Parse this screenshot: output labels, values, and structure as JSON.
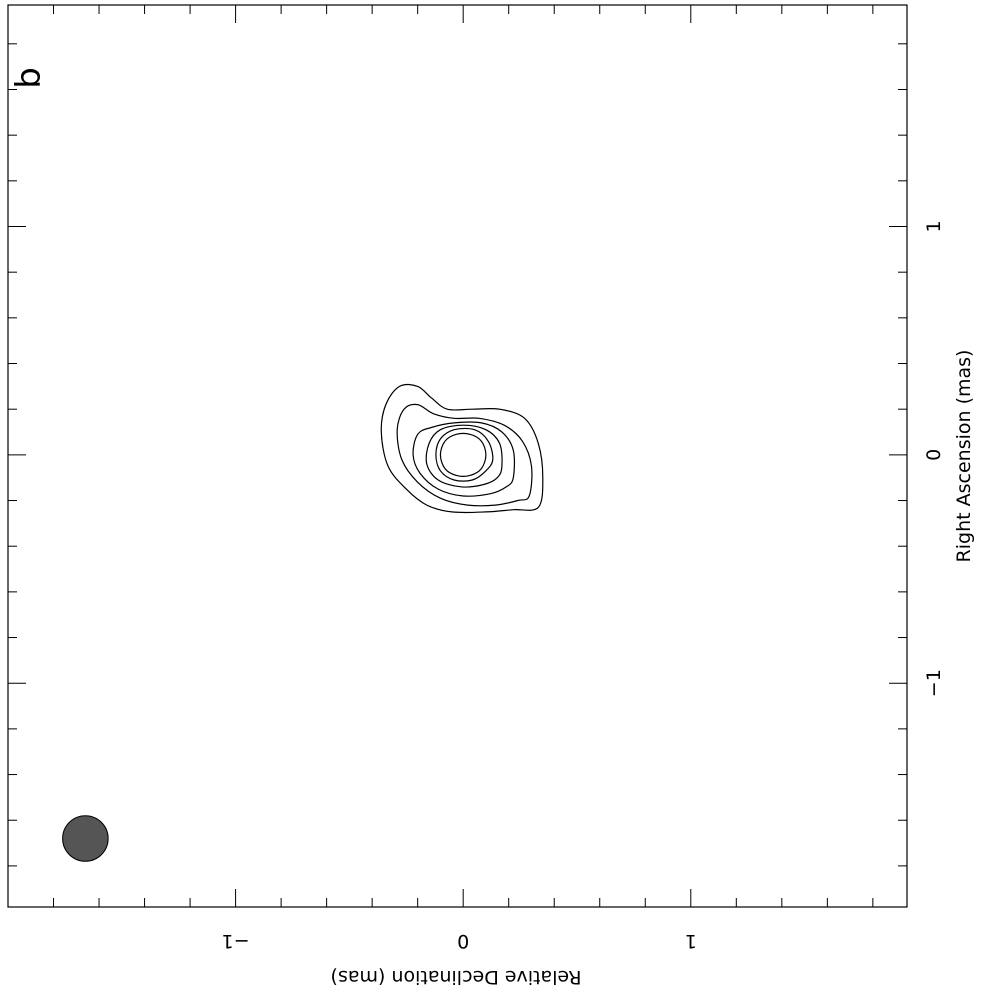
{
  "chart_data": {
    "type": "contour",
    "panel_label": "b",
    "xlabel": "Right Ascension  (mas)",
    "ylabel": "Relative Declination  (mas)",
    "x_ticks": [
      {
        "value": 1,
        "label": "1"
      },
      {
        "value": 0,
        "label": "0"
      },
      {
        "value": -1,
        "label": "−1"
      }
    ],
    "y_ticks": [
      {
        "value": -1,
        "label": "−1"
      },
      {
        "value": 0,
        "label": "0"
      },
      {
        "value": 1,
        "label": "1"
      }
    ],
    "xlim": [
      1.97,
      -1.98
    ],
    "ylim": [
      -2.0,
      1.95
    ],
    "contours": [
      [
        [
          -0.23,
          0.33
        ],
        [
          -0.1,
          0.35
        ],
        [
          0.05,
          0.33
        ],
        [
          0.16,
          0.27
        ],
        [
          0.2,
          0.16
        ],
        [
          0.2,
          0.04
        ],
        [
          0.2,
          -0.07
        ],
        [
          0.25,
          -0.14
        ],
        [
          0.3,
          -0.2
        ],
        [
          0.3,
          -0.28
        ],
        [
          0.22,
          -0.34
        ],
        [
          0.1,
          -0.36
        ],
        [
          -0.05,
          -0.33
        ],
        [
          -0.15,
          -0.25
        ],
        [
          -0.22,
          -0.16
        ],
        [
          -0.25,
          -0.05
        ],
        [
          -0.25,
          0.1
        ],
        [
          -0.24,
          0.22
        ]
      ],
      [
        [
          -0.18,
          0.29
        ],
        [
          -0.05,
          0.3
        ],
        [
          0.06,
          0.26
        ],
        [
          0.13,
          0.18
        ],
        [
          0.16,
          0.07
        ],
        [
          0.16,
          -0.04
        ],
        [
          0.18,
          -0.13
        ],
        [
          0.22,
          -0.2
        ],
        [
          0.2,
          -0.26
        ],
        [
          0.11,
          -0.29
        ],
        [
          -0.02,
          -0.27
        ],
        [
          -0.12,
          -0.2
        ],
        [
          -0.19,
          -0.1
        ],
        [
          -0.22,
          0.02
        ],
        [
          -0.22,
          0.14
        ],
        [
          -0.2,
          0.24
        ]
      ],
      [
        [
          -0.1,
          0.22
        ],
        [
          0.02,
          0.22
        ],
        [
          0.1,
          0.17
        ],
        [
          0.14,
          0.08
        ],
        [
          0.14,
          -0.04
        ],
        [
          0.12,
          -0.14
        ],
        [
          0.09,
          -0.2
        ],
        [
          0.0,
          -0.22
        ],
        [
          -0.08,
          -0.19
        ],
        [
          -0.15,
          -0.11
        ],
        [
          -0.18,
          0.0
        ],
        [
          -0.17,
          0.12
        ],
        [
          -0.14,
          0.19
        ]
      ],
      [
        [
          -0.05,
          0.17
        ],
        [
          0.05,
          0.16
        ],
        [
          0.11,
          0.1
        ],
        [
          0.13,
          0.0
        ],
        [
          0.11,
          -0.1
        ],
        [
          0.05,
          -0.15
        ],
        [
          -0.04,
          -0.16
        ],
        [
          -0.11,
          -0.11
        ],
        [
          -0.14,
          -0.01
        ],
        [
          -0.13,
          0.09
        ],
        [
          -0.1,
          0.15
        ]
      ],
      [
        [
          -0.02,
          0.13
        ],
        [
          0.06,
          0.11
        ],
        [
          0.11,
          0.05
        ],
        [
          0.11,
          -0.04
        ],
        [
          0.07,
          -0.1
        ],
        [
          0.0,
          -0.12
        ],
        [
          -0.07,
          -0.1
        ],
        [
          -0.11,
          -0.04
        ],
        [
          -0.11,
          0.04
        ],
        [
          -0.07,
          0.1
        ]
      ],
      [
        [
          0.0,
          0.1
        ],
        [
          0.06,
          0.08
        ],
        [
          0.09,
          0.03
        ],
        [
          0.09,
          -0.03
        ],
        [
          0.06,
          -0.08
        ],
        [
          0.0,
          -0.1
        ],
        [
          -0.06,
          -0.08
        ],
        [
          -0.09,
          -0.03
        ],
        [
          -0.09,
          0.03
        ],
        [
          -0.06,
          0.08
        ]
      ]
    ],
    "beam": {
      "x": -1.68,
      "y": -1.66,
      "diameter_mas": 0.2,
      "fill": "#555555"
    },
    "colors": {
      "contour": "#000000",
      "frame": "#000000",
      "beam": "#555555"
    }
  }
}
